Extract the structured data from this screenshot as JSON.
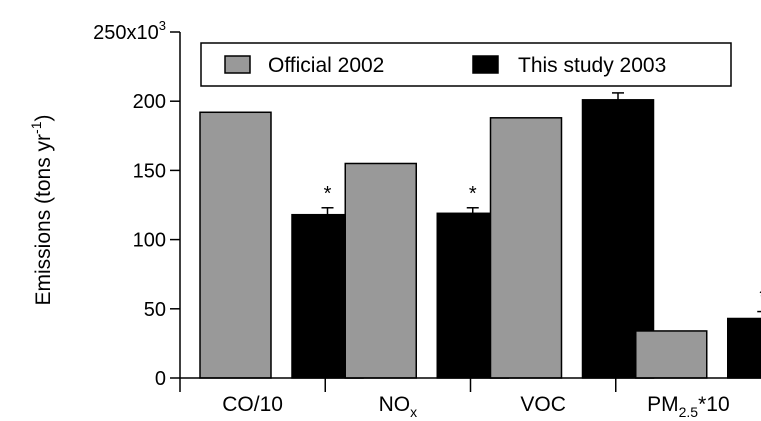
{
  "chart_data": {
    "type": "bar",
    "title": "",
    "ylabel": {
      "main": "Emissions (tons yr",
      "sup": "-1",
      "close": ")"
    },
    "ylim": [
      0,
      250000
    ],
    "y_tick_labels": [
      "0",
      "50",
      "100",
      "150",
      "200"
    ],
    "y_top_label": {
      "base": "250x10",
      "exp": "3"
    },
    "categories": [
      {
        "main": "CO/10",
        "sub": "",
        "tail": ""
      },
      {
        "main": "NO",
        "sub": "x",
        "tail": ""
      },
      {
        "main": "VOC",
        "sub": "",
        "tail": ""
      },
      {
        "main": "PM",
        "sub": "2.5",
        "tail": "*10"
      }
    ],
    "series": [
      {
        "name": "Official 2002",
        "color": "#999999",
        "values": [
          192000,
          155000,
          188000,
          34000
        ]
      },
      {
        "name": "This study 2003",
        "color": "#000000",
        "values": [
          118000,
          119000,
          201000,
          43000
        ],
        "errors": [
          5000,
          4000,
          5000,
          5000
        ]
      }
    ],
    "significance_marker": "*",
    "significant": [
      true,
      true,
      false,
      true
    ],
    "legend_position": "top-center"
  }
}
